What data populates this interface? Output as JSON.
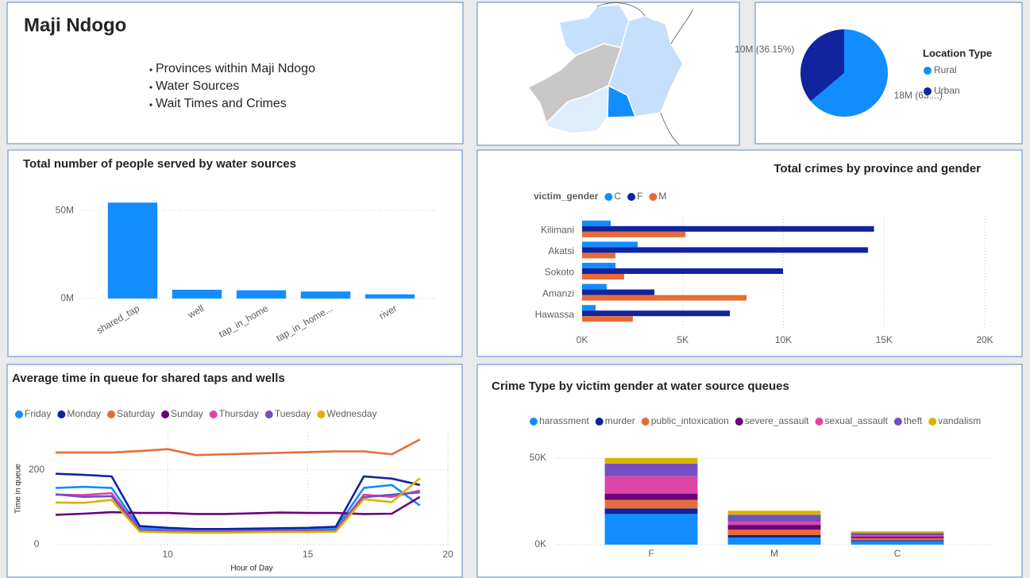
{
  "header": {
    "title": "Maji Ndogo",
    "bullets": [
      "Provinces within Maji Ndogo",
      "Water Sources",
      "Wait Times and Crimes"
    ]
  },
  "chart_data": [
    {
      "type": "pie",
      "categories": [
        "Rural",
        "Urban"
      ],
      "values": [
        17660000,
        10000000
      ],
      "value_labels": [
        "18M (63....)",
        "10M (36.15%)"
      ],
      "colors": [
        "#118dff",
        "#12239e"
      ],
      "legend_title": "Location Type"
    },
    {
      "type": "bar",
      "title": "Total number of people served by water sources",
      "categories": [
        "shared_tap",
        "well",
        "tap_in_home",
        "tap_in_home...",
        "river"
      ],
      "values": [
        54500000,
        5000000,
        4700000,
        4000000,
        2400000
      ],
      "color": "#118dff",
      "ylim": [
        0,
        60000000
      ],
      "yticks": [
        {
          "value": 0,
          "label": "0M"
        },
        {
          "value": 50000000,
          "label": "50M"
        }
      ],
      "grid": true
    },
    {
      "type": "hbar",
      "title": "Total crimes by province and gender",
      "legend_title": "victim_gender",
      "categories": [
        "Kilimani",
        "Akatsi",
        "Sokoto",
        "Amanzi",
        "Hawassa"
      ],
      "series": [
        {
          "name": "C",
          "color": "#118dff",
          "values": [
            1420,
            2760,
            1660,
            1220,
            670
          ]
        },
        {
          "name": "F",
          "color": "#12239e",
          "values": [
            14500,
            14200,
            9980,
            3590,
            7340
          ]
        },
        {
          "name": "M",
          "color": "#e66c37",
          "values": [
            5130,
            1660,
            2090,
            8170,
            2520
          ]
        }
      ],
      "xlim": [
        0,
        20000
      ],
      "xticks": [
        {
          "value": 0,
          "label": "0K"
        },
        {
          "value": 5000,
          "label": "5K"
        },
        {
          "value": 10000,
          "label": "10K"
        },
        {
          "value": 15000,
          "label": "15K"
        },
        {
          "value": 20000,
          "label": "20K"
        }
      ],
      "grid": true
    },
    {
      "type": "line",
      "title": "Average time in queue for shared taps and wells",
      "xlabel": "Hour of Day",
      "ylabel": "Time in queue",
      "x": [
        6,
        7,
        8,
        9,
        10,
        11,
        12,
        13,
        14,
        15,
        16,
        17,
        18,
        19
      ],
      "series": [
        {
          "name": "Friday",
          "color": "#118dff",
          "values": [
            152,
            155,
            152,
            45,
            40,
            38,
            38,
            39,
            40,
            40,
            43,
            152,
            160,
            105
          ]
        },
        {
          "name": "Monday",
          "color": "#12239e",
          "values": [
            190,
            187,
            183,
            50,
            45,
            42,
            42,
            43,
            44,
            45,
            48,
            183,
            177,
            160
          ]
        },
        {
          "name": "Saturday",
          "color": "#e66c37",
          "values": [
            247,
            247,
            247,
            251,
            256,
            240,
            242,
            244,
            246,
            248,
            250,
            250,
            242,
            282
          ]
        },
        {
          "name": "Sunday",
          "color": "#6b007b",
          "values": [
            80,
            83,
            87,
            85,
            85,
            82,
            82,
            84,
            86,
            85,
            85,
            82,
            83,
            128
          ]
        },
        {
          "name": "Thursday",
          "color": "#e044a7",
          "values": [
            134,
            133,
            138,
            40,
            36,
            35,
            35,
            36,
            37,
            37,
            38,
            134,
            128,
            145
          ]
        },
        {
          "name": "Tuesday",
          "color": "#744ec2",
          "values": [
            135,
            128,
            130,
            38,
            35,
            34,
            34,
            35,
            36,
            36,
            37,
            127,
            134,
            140
          ]
        },
        {
          "name": "Wednesday",
          "color": "#d9b300",
          "values": [
            113,
            112,
            120,
            35,
            33,
            32,
            32,
            33,
            34,
            34,
            35,
            122,
            114,
            178
          ]
        }
      ],
      "xlim": [
        6,
        20
      ],
      "xticks": [
        10,
        15,
        20
      ],
      "ylim": [
        0,
        300
      ],
      "yticks": [
        0,
        200
      ],
      "grid": true
    },
    {
      "type": "stacked",
      "title": "Crime Type by victim gender at water source queues",
      "categories": [
        "F",
        "M",
        "C"
      ],
      "series": [
        {
          "name": "harassment",
          "color": "#118dff",
          "values": [
            17700,
            4100,
            2000
          ]
        },
        {
          "name": "murder",
          "color": "#12239e",
          "values": [
            3200,
            1400,
            600
          ]
        },
        {
          "name": "public_intoxication",
          "color": "#e66c37",
          "values": [
            5000,
            3200,
            1200
          ]
        },
        {
          "name": "severe_assault",
          "color": "#6b007b",
          "values": [
            3600,
            2700,
            900
          ]
        },
        {
          "name": "sexual_assault",
          "color": "#e044a7",
          "values": [
            10000,
            1800,
            800
          ]
        },
        {
          "name": "theft",
          "color": "#744ec2",
          "values": [
            7300,
            4100,
            1300
          ]
        },
        {
          "name": "vandalism",
          "color": "#d9b300",
          "values": [
            3200,
            2300,
            900
          ]
        }
      ],
      "ylim": [
        0,
        55000
      ],
      "yticks": [
        {
          "value": 0,
          "label": "0K"
        },
        {
          "value": 50000,
          "label": "50K"
        }
      ],
      "grid": true
    }
  ]
}
